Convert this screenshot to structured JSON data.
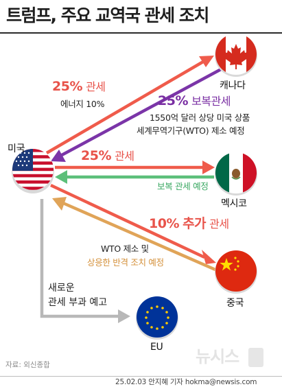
{
  "title": "트럼프, 주요 교역국 관세 조치",
  "countries": {
    "us": "미국",
    "canada": "캐나다",
    "mexico": "멕시코",
    "china": "중국",
    "eu": "EU"
  },
  "canada": {
    "tariff_pct": "25%",
    "tariff_word": "관세",
    "energy_note": "에너지 10%",
    "retaliation_pct": "25%",
    "retaliation_word": "보복관세",
    "retaliation_line1": "1550억 달러 상당 미국 상품",
    "retaliation_line2": "세계무역기구(WTO) 제소 예정"
  },
  "mexico": {
    "tariff_pct": "25%",
    "tariff_word": "관세",
    "retaliation_note": "보복 관세 예정"
  },
  "china": {
    "tariff_pct": "10%",
    "tariff_extra": "추가",
    "tariff_word": "관세",
    "response_line1": "WTO 제소 및",
    "response_line2": "상응한 반격 조치 예정"
  },
  "eu": {
    "note_line1": "새로운",
    "note_line2": "관세 부과 예고"
  },
  "source": "자료: 외신종합",
  "watermark": "뉴시스",
  "credit": "25.02.03 안지혜 기자 hokma@newsis.com",
  "colors": {
    "us_tariff": "#ef5b4b",
    "canada_retaliation": "#7b35a8",
    "mexico_retaliation": "#5cbf7a",
    "china_retaliation": "#e0a458",
    "eu_notice": "#b8b8b8"
  }
}
